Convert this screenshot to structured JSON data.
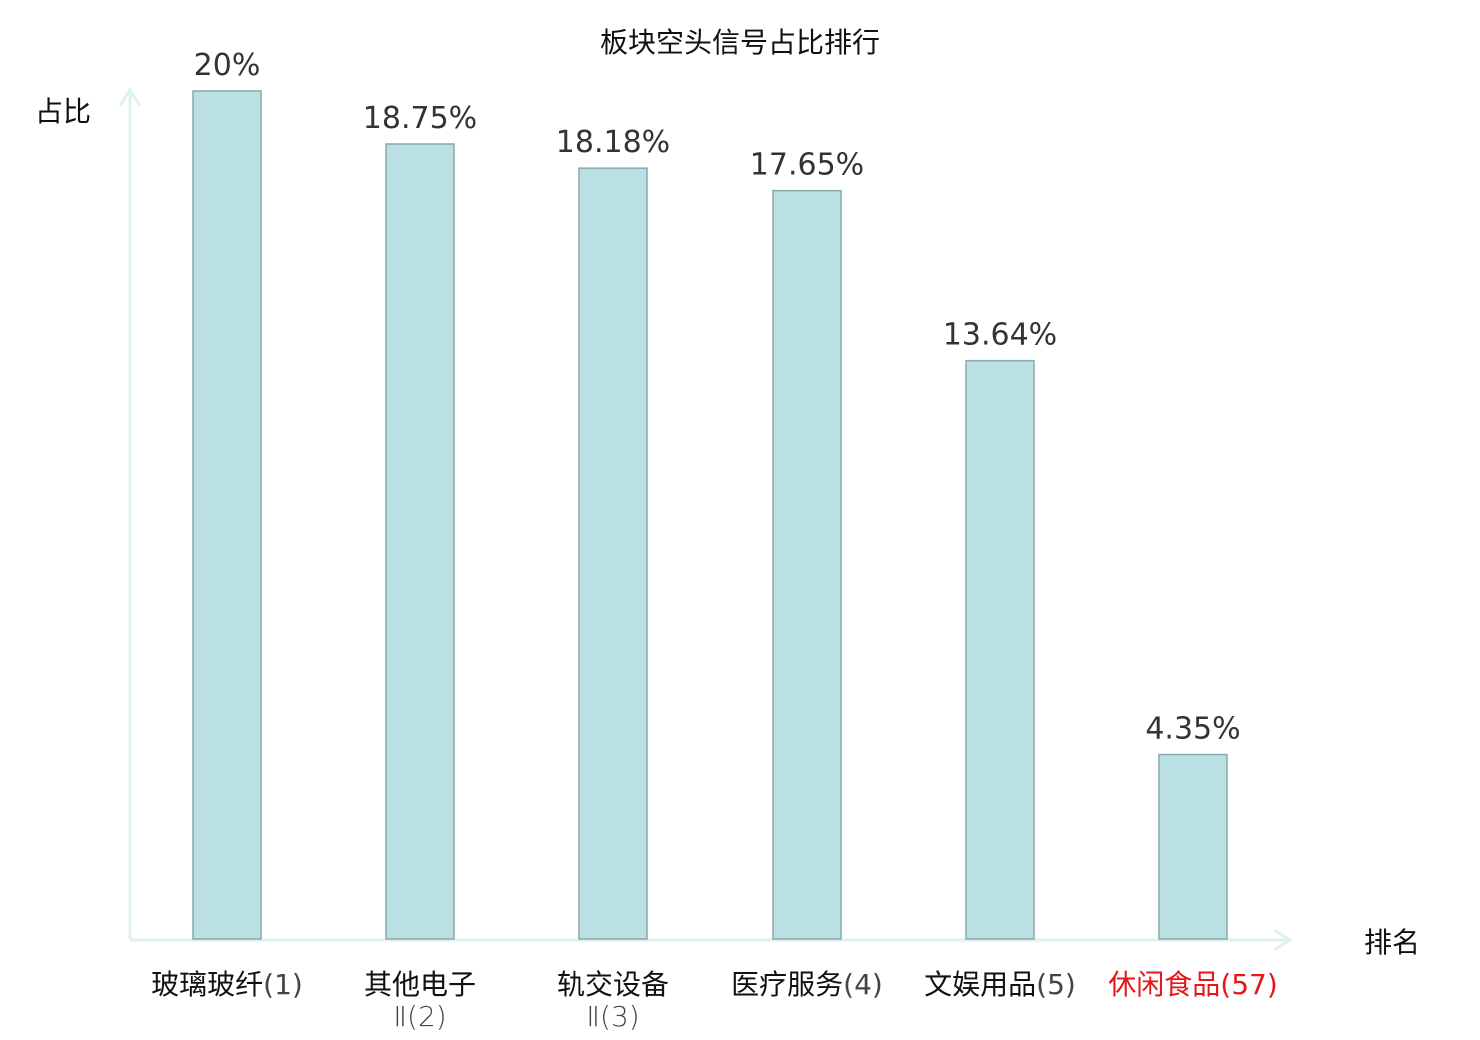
{
  "chart_data": {
    "type": "bar",
    "title": "板块空头信号占比排行",
    "ylabel": "占比",
    "xlabel": "排名",
    "ylim": [
      0,
      20
    ],
    "grid": false,
    "categories": [
      {
        "name": "玻璃玻纤",
        "rank": "(1)",
        "highlight": false
      },
      {
        "name": "其他电子Ⅱ",
        "rank": "(2)",
        "highlight": false
      },
      {
        "name": "轨交设备Ⅱ",
        "rank": "(3)",
        "highlight": false
      },
      {
        "name": "医疗服务",
        "rank": "(4)",
        "highlight": false
      },
      {
        "name": "文娱用品",
        "rank": "(5)",
        "highlight": false
      },
      {
        "name": "休闲食品",
        "rank": "(57)",
        "highlight": true
      }
    ],
    "values": [
      20,
      18.75,
      18.18,
      17.65,
      13.64,
      4.35
    ],
    "data_labels": [
      "20%",
      "18.75%",
      "18.18%",
      "17.65%",
      "13.64%",
      "4.35%"
    ],
    "colors": {
      "bar_fill": "#bbe0e3",
      "bar_stroke": "#8aa9aa",
      "axis": "#dff2f0",
      "highlight_text": "#e8151b",
      "text": "#333333"
    }
  }
}
